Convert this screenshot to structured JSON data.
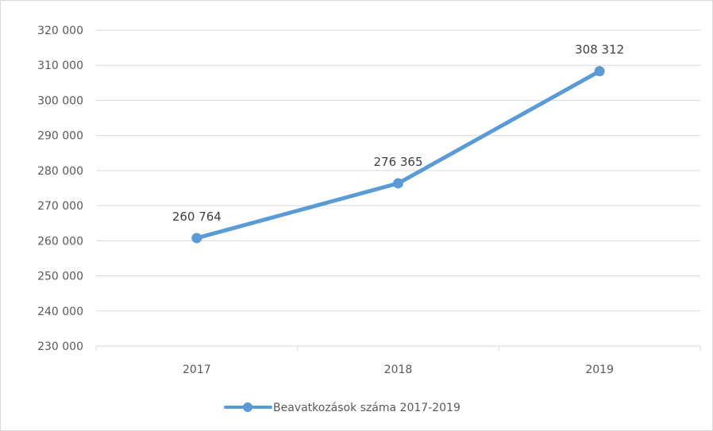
{
  "chart_data": {
    "type": "line",
    "categories": [
      "2017",
      "2018",
      "2019"
    ],
    "series": [
      {
        "name": "Beavatkozások száma 2017-2019",
        "values": [
          260764,
          276365,
          308312
        ],
        "data_labels": [
          "260 764",
          "276 365",
          "308 312"
        ],
        "color": "#5b9bd5"
      }
    ],
    "ylim": [
      230000,
      320000
    ],
    "y_ticks": [
      230000,
      240000,
      250000,
      260000,
      270000,
      280000,
      290000,
      300000,
      310000,
      320000
    ],
    "y_tick_labels": [
      "230 000",
      "240 000",
      "250 000",
      "260 000",
      "270 000",
      "280 000",
      "290 000",
      "300 000",
      "310 000",
      "320 000"
    ],
    "grid": true,
    "legend_position": "bottom",
    "title": "",
    "xlabel": "",
    "ylabel": ""
  }
}
